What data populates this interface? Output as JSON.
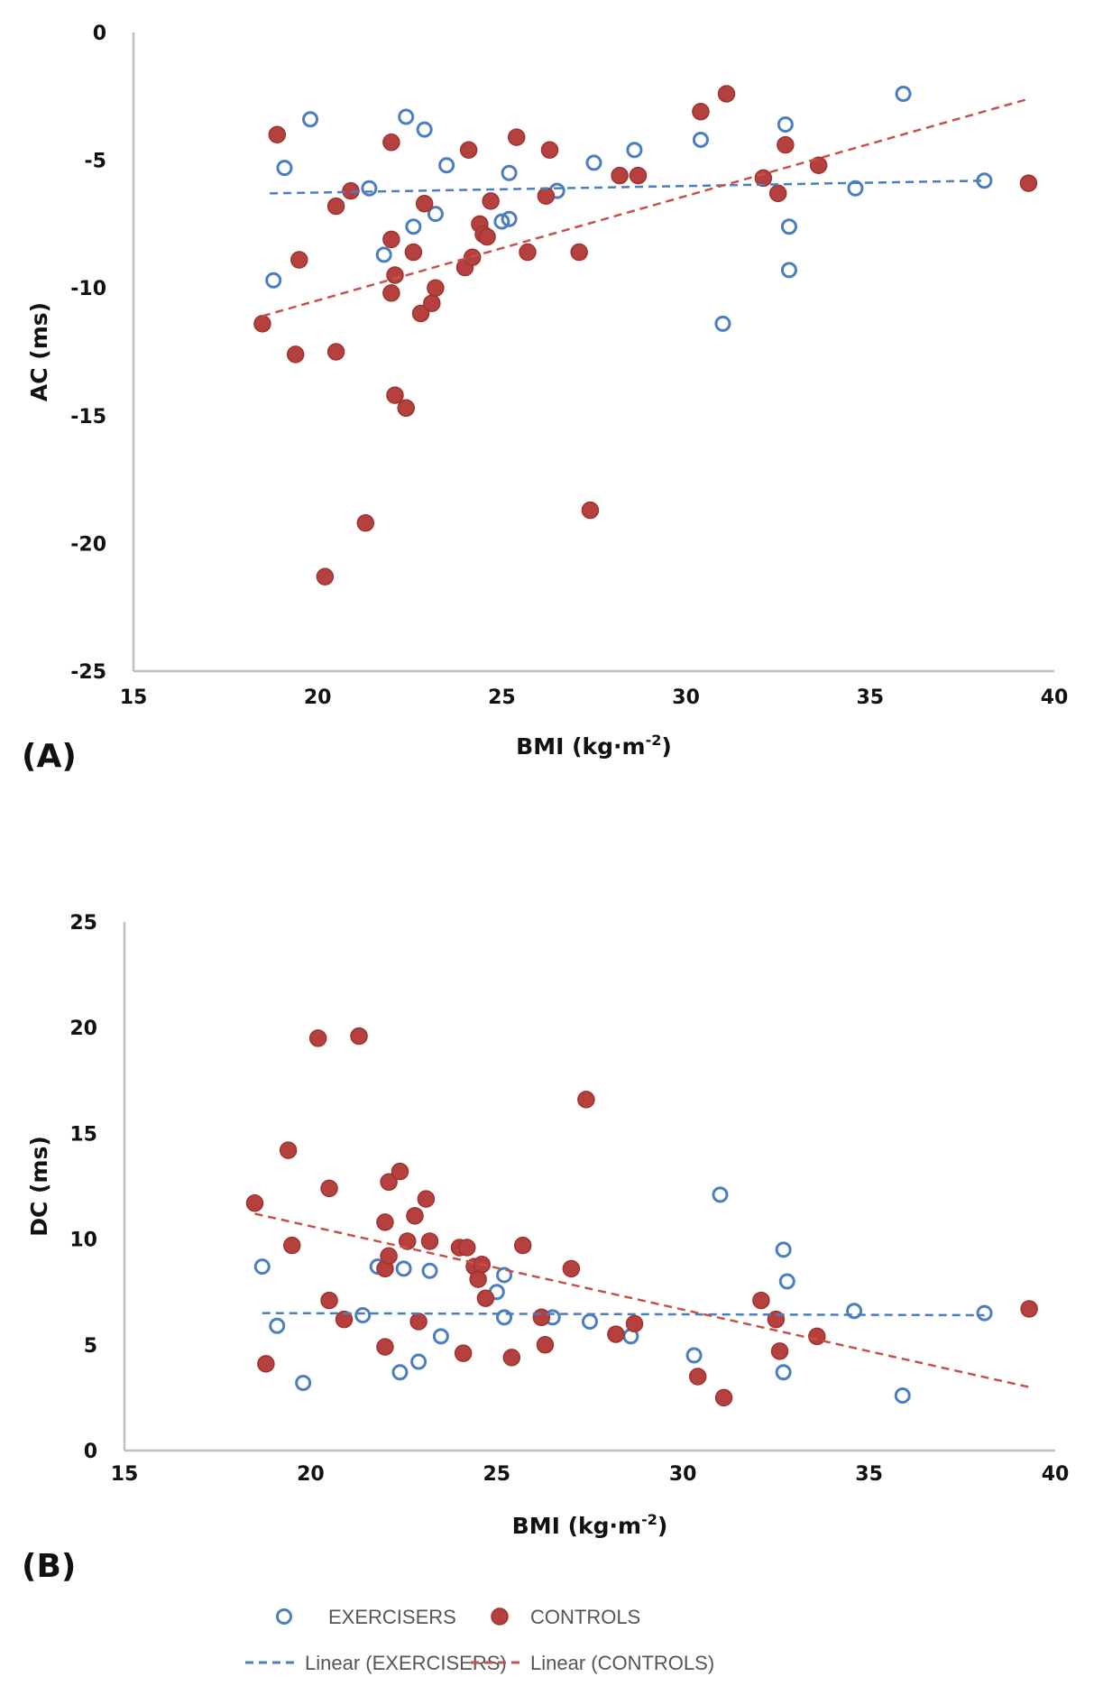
{
  "legend": {
    "items": [
      {
        "label": "EXERCISERS",
        "kind": "marker-open",
        "color": "#4a7ebf"
      },
      {
        "label": "CONTROLS",
        "kind": "marker-filled",
        "color": "#b5403d"
      },
      {
        "label": "Linear (EXERCISERS)",
        "kind": "dashed-line",
        "color": "#4a7ebf"
      },
      {
        "label": "Linear (CONTROLS)",
        "kind": "dashed-line",
        "color": "#c8504b"
      }
    ]
  },
  "colors": {
    "exercisers": "#4a7ebf",
    "controls_fill": "#b5403d",
    "controls_stroke": "#9e3431",
    "controls_trend": "#c8504b",
    "axis": "#bfbfbf"
  },
  "chart_data": [
    {
      "panel_label": "(A)",
      "type": "scatter",
      "xlabel": "BMI (kg·m",
      "xlabel_sup": "-2",
      "xlabel_close": ")",
      "ylabel": "AC (ms)",
      "xlim": [
        15,
        40
      ],
      "ylim": [
        -25,
        0
      ],
      "xticks": [
        15,
        20,
        25,
        30,
        35,
        40
      ],
      "yticks": [
        0,
        -5,
        -10,
        -15,
        -20,
        -25
      ],
      "grid": false,
      "series": [
        {
          "name": "EXERCISERS",
          "marker": "open-circle",
          "points": [
            [
              18.8,
              -9.7
            ],
            [
              19.1,
              -5.3
            ],
            [
              19.8,
              -3.4
            ],
            [
              21.4,
              -6.1
            ],
            [
              21.8,
              -8.7
            ],
            [
              22.4,
              -3.3
            ],
            [
              22.6,
              -7.6
            ],
            [
              22.9,
              -3.8
            ],
            [
              23.2,
              -7.1
            ],
            [
              23.5,
              -5.2
            ],
            [
              25.0,
              -7.4
            ],
            [
              25.2,
              -7.3
            ],
            [
              25.2,
              -5.5
            ],
            [
              26.5,
              -6.2
            ],
            [
              27.5,
              -5.1
            ],
            [
              28.6,
              -4.6
            ],
            [
              30.4,
              -4.2
            ],
            [
              31.0,
              -11.4
            ],
            [
              32.7,
              -3.6
            ],
            [
              32.8,
              -7.6
            ],
            [
              32.8,
              -9.3
            ],
            [
              34.6,
              -6.1
            ],
            [
              35.9,
              -2.4
            ],
            [
              38.1,
              -5.8
            ]
          ]
        },
        {
          "name": "CONTROLS",
          "marker": "filled-circle",
          "points": [
            [
              18.5,
              -11.4
            ],
            [
              18.9,
              -4.0
            ],
            [
              19.5,
              -8.9
            ],
            [
              19.4,
              -12.6
            ],
            [
              20.5,
              -6.8
            ],
            [
              20.5,
              -12.5
            ],
            [
              20.9,
              -6.2
            ],
            [
              21.3,
              -19.2
            ],
            [
              20.2,
              -21.3
            ],
            [
              22.0,
              -4.3
            ],
            [
              22.0,
              -8.1
            ],
            [
              22.1,
              -9.5
            ],
            [
              22.0,
              -10.2
            ],
            [
              22.1,
              -14.2
            ],
            [
              22.4,
              -14.7
            ],
            [
              22.6,
              -8.6
            ],
            [
              22.8,
              -11.0
            ],
            [
              22.9,
              -6.7
            ],
            [
              23.1,
              -10.6
            ],
            [
              23.2,
              -10.0
            ],
            [
              24.0,
              -9.2
            ],
            [
              24.1,
              -4.6
            ],
            [
              24.2,
              -8.8
            ],
            [
              24.4,
              -7.5
            ],
            [
              24.5,
              -7.9
            ],
            [
              24.6,
              -8.0
            ],
            [
              24.7,
              -6.6
            ],
            [
              25.4,
              -4.1
            ],
            [
              25.7,
              -8.6
            ],
            [
              26.2,
              -6.4
            ],
            [
              26.3,
              -4.6
            ],
            [
              27.1,
              -8.6
            ],
            [
              27.4,
              -18.7
            ],
            [
              28.2,
              -5.6
            ],
            [
              28.7,
              -5.6
            ],
            [
              30.4,
              -3.1
            ],
            [
              31.1,
              -2.4
            ],
            [
              32.1,
              -5.7
            ],
            [
              32.5,
              -6.3
            ],
            [
              32.7,
              -4.4
            ],
            [
              33.6,
              -5.2
            ],
            [
              39.3,
              -5.9
            ]
          ]
        }
      ],
      "trendlines": [
        {
          "name": "Linear (EXERCISERS)",
          "from": [
            18.7,
            -6.3
          ],
          "to": [
            38.1,
            -5.8
          ]
        },
        {
          "name": "Linear (CONTROLS)",
          "from": [
            18.5,
            -11.1
          ],
          "to": [
            39.3,
            -2.6
          ]
        }
      ]
    },
    {
      "panel_label": "(B)",
      "type": "scatter",
      "xlabel": "BMI (kg·m",
      "xlabel_sup": "-2",
      "xlabel_close": ")",
      "ylabel": "DC (ms)",
      "xlim": [
        15,
        40
      ],
      "ylim": [
        0,
        25
      ],
      "xticks": [
        15,
        20,
        25,
        30,
        35,
        40
      ],
      "yticks": [
        25,
        20,
        15,
        10,
        5,
        0
      ],
      "grid": false,
      "series": [
        {
          "name": "EXERCISERS",
          "marker": "open-circle",
          "points": [
            [
              18.7,
              8.7
            ],
            [
              19.1,
              5.9
            ],
            [
              19.8,
              3.2
            ],
            [
              21.4,
              6.4
            ],
            [
              21.8,
              8.7
            ],
            [
              22.4,
              3.7
            ],
            [
              22.5,
              8.6
            ],
            [
              22.9,
              4.2
            ],
            [
              23.2,
              8.5
            ],
            [
              23.5,
              5.4
            ],
            [
              25.0,
              7.5
            ],
            [
              25.2,
              8.3
            ],
            [
              25.2,
              6.3
            ],
            [
              26.5,
              6.3
            ],
            [
              27.5,
              6.1
            ],
            [
              28.6,
              5.4
            ],
            [
              30.3,
              4.5
            ],
            [
              31.0,
              12.1
            ],
            [
              32.7,
              9.5
            ],
            [
              32.8,
              8.0
            ],
            [
              32.7,
              3.7
            ],
            [
              34.6,
              6.6
            ],
            [
              35.9,
              2.6
            ],
            [
              38.1,
              6.5
            ]
          ]
        },
        {
          "name": "CONTROLS",
          "marker": "filled-circle",
          "points": [
            [
              18.5,
              11.7
            ],
            [
              18.8,
              4.1
            ],
            [
              19.4,
              14.2
            ],
            [
              19.5,
              9.7
            ],
            [
              20.2,
              19.5
            ],
            [
              20.5,
              12.4
            ],
            [
              20.5,
              7.1
            ],
            [
              20.9,
              6.2
            ],
            [
              21.3,
              19.6
            ],
            [
              22.0,
              10.8
            ],
            [
              22.0,
              8.6
            ],
            [
              22.0,
              4.9
            ],
            [
              22.1,
              12.7
            ],
            [
              22.1,
              9.2
            ],
            [
              22.4,
              13.2
            ],
            [
              22.6,
              9.9
            ],
            [
              22.8,
              11.1
            ],
            [
              22.9,
              6.1
            ],
            [
              23.1,
              11.9
            ],
            [
              23.2,
              9.9
            ],
            [
              24.0,
              9.6
            ],
            [
              24.1,
              4.6
            ],
            [
              24.2,
              9.6
            ],
            [
              24.4,
              8.7
            ],
            [
              24.5,
              8.1
            ],
            [
              24.6,
              8.8
            ],
            [
              24.7,
              7.2
            ],
            [
              25.4,
              4.4
            ],
            [
              25.7,
              9.7
            ],
            [
              26.2,
              6.3
            ],
            [
              26.3,
              5.0
            ],
            [
              27.0,
              8.6
            ],
            [
              27.4,
              16.6
            ],
            [
              28.2,
              5.5
            ],
            [
              28.7,
              6.0
            ],
            [
              30.4,
              3.5
            ],
            [
              31.1,
              2.5
            ],
            [
              32.1,
              7.1
            ],
            [
              32.5,
              6.2
            ],
            [
              32.6,
              4.7
            ],
            [
              33.6,
              5.4
            ],
            [
              39.3,
              6.7
            ]
          ]
        }
      ],
      "trendlines": [
        {
          "name": "Linear (EXERCISERS)",
          "from": [
            18.7,
            6.5
          ],
          "to": [
            38.1,
            6.4
          ]
        },
        {
          "name": "Linear (CONTROLS)",
          "from": [
            18.5,
            11.2
          ],
          "to": [
            39.3,
            3.0
          ]
        }
      ]
    }
  ]
}
